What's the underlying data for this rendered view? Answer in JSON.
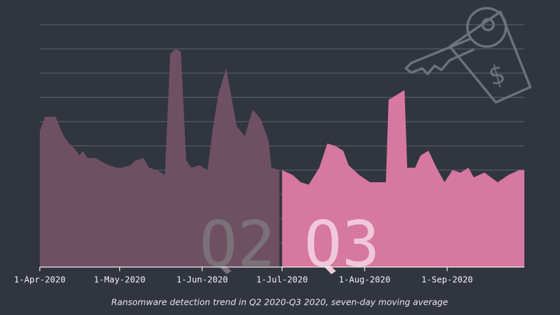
{
  "chart_data": {
    "type": "area",
    "title": "Ransomware detection trend in Q2 2020-Q3 2020, seven-day moving average",
    "xlim": [
      "2020-04-01",
      "2020-09-30"
    ],
    "xticks": [
      {
        "value": "2020-04-01",
        "label": "1-Apr-2020"
      },
      {
        "value": "2020-05-01",
        "label": "1-May-2020"
      },
      {
        "value": "2020-06-01",
        "label": "1-Jun-2020"
      },
      {
        "value": "2020-07-01",
        "label": "1-Jul-2020"
      },
      {
        "value": "2020-08-01",
        "label": "1-Aug-2020"
      },
      {
        "value": "2020-09-01",
        "label": "1-Sep-2020"
      }
    ],
    "ylim": [
      0,
      10
    ],
    "yticks": [
      1,
      2,
      3,
      4,
      5,
      6,
      7,
      8,
      9,
      10
    ],
    "grid": true,
    "series": [
      {
        "name": "Q2",
        "color": "#6f5063",
        "label_color": "#7b7279",
        "x": [
          "2020-04-01",
          "2020-04-03",
          "2020-04-05",
          "2020-04-07",
          "2020-04-08",
          "2020-04-10",
          "2020-04-12",
          "2020-04-14",
          "2020-04-16",
          "2020-04-17",
          "2020-04-19",
          "2020-04-22",
          "2020-04-25",
          "2020-04-27",
          "2020-04-30",
          "2020-05-02",
          "2020-05-05",
          "2020-05-07",
          "2020-05-10",
          "2020-05-12",
          "2020-05-15",
          "2020-05-18",
          "2020-05-20",
          "2020-05-22",
          "2020-05-24",
          "2020-05-26",
          "2020-05-28",
          "2020-05-31",
          "2020-06-03",
          "2020-06-05",
          "2020-06-07",
          "2020-06-10",
          "2020-06-12",
          "2020-06-14",
          "2020-06-17",
          "2020-06-20",
          "2020-06-23",
          "2020-06-26",
          "2020-06-27",
          "2020-06-30"
        ],
        "values": [
          5.6,
          6.2,
          6.2,
          6.2,
          5.9,
          5.4,
          5.1,
          4.9,
          4.6,
          4.8,
          4.5,
          4.5,
          4.3,
          4.2,
          4.1,
          4.1,
          4.2,
          4.4,
          4.5,
          4.1,
          4.0,
          3.8,
          8.8,
          9.0,
          8.9,
          4.4,
          4.1,
          4.2,
          4.0,
          5.7,
          7.1,
          8.2,
          7.0,
          5.8,
          5.4,
          6.5,
          6.1,
          5.2,
          4.1,
          4.0
        ]
      },
      {
        "name": "Q3",
        "color": "#d6789f",
        "label_color": "#f0c8da",
        "x": [
          "2020-07-01",
          "2020-07-05",
          "2020-07-08",
          "2020-07-11",
          "2020-07-15",
          "2020-07-18",
          "2020-07-21",
          "2020-07-24",
          "2020-07-26",
          "2020-07-30",
          "2020-08-03",
          "2020-08-06",
          "2020-08-09",
          "2020-08-10",
          "2020-08-13",
          "2020-08-16",
          "2020-08-17",
          "2020-08-20",
          "2020-08-22",
          "2020-08-25",
          "2020-08-28",
          "2020-08-31",
          "2020-09-03",
          "2020-09-06",
          "2020-09-09",
          "2020-09-11",
          "2020-09-15",
          "2020-09-20",
          "2020-09-24",
          "2020-09-28",
          "2020-09-30"
        ],
        "values": [
          4.0,
          3.8,
          3.5,
          3.4,
          4.1,
          5.1,
          5.0,
          4.8,
          4.2,
          3.8,
          3.5,
          3.5,
          3.5,
          6.9,
          7.1,
          7.3,
          4.1,
          4.1,
          4.6,
          4.8,
          4.1,
          3.5,
          4.0,
          3.9,
          4.1,
          3.7,
          3.9,
          3.5,
          3.8,
          4.0,
          4.0
        ]
      }
    ]
  }
}
